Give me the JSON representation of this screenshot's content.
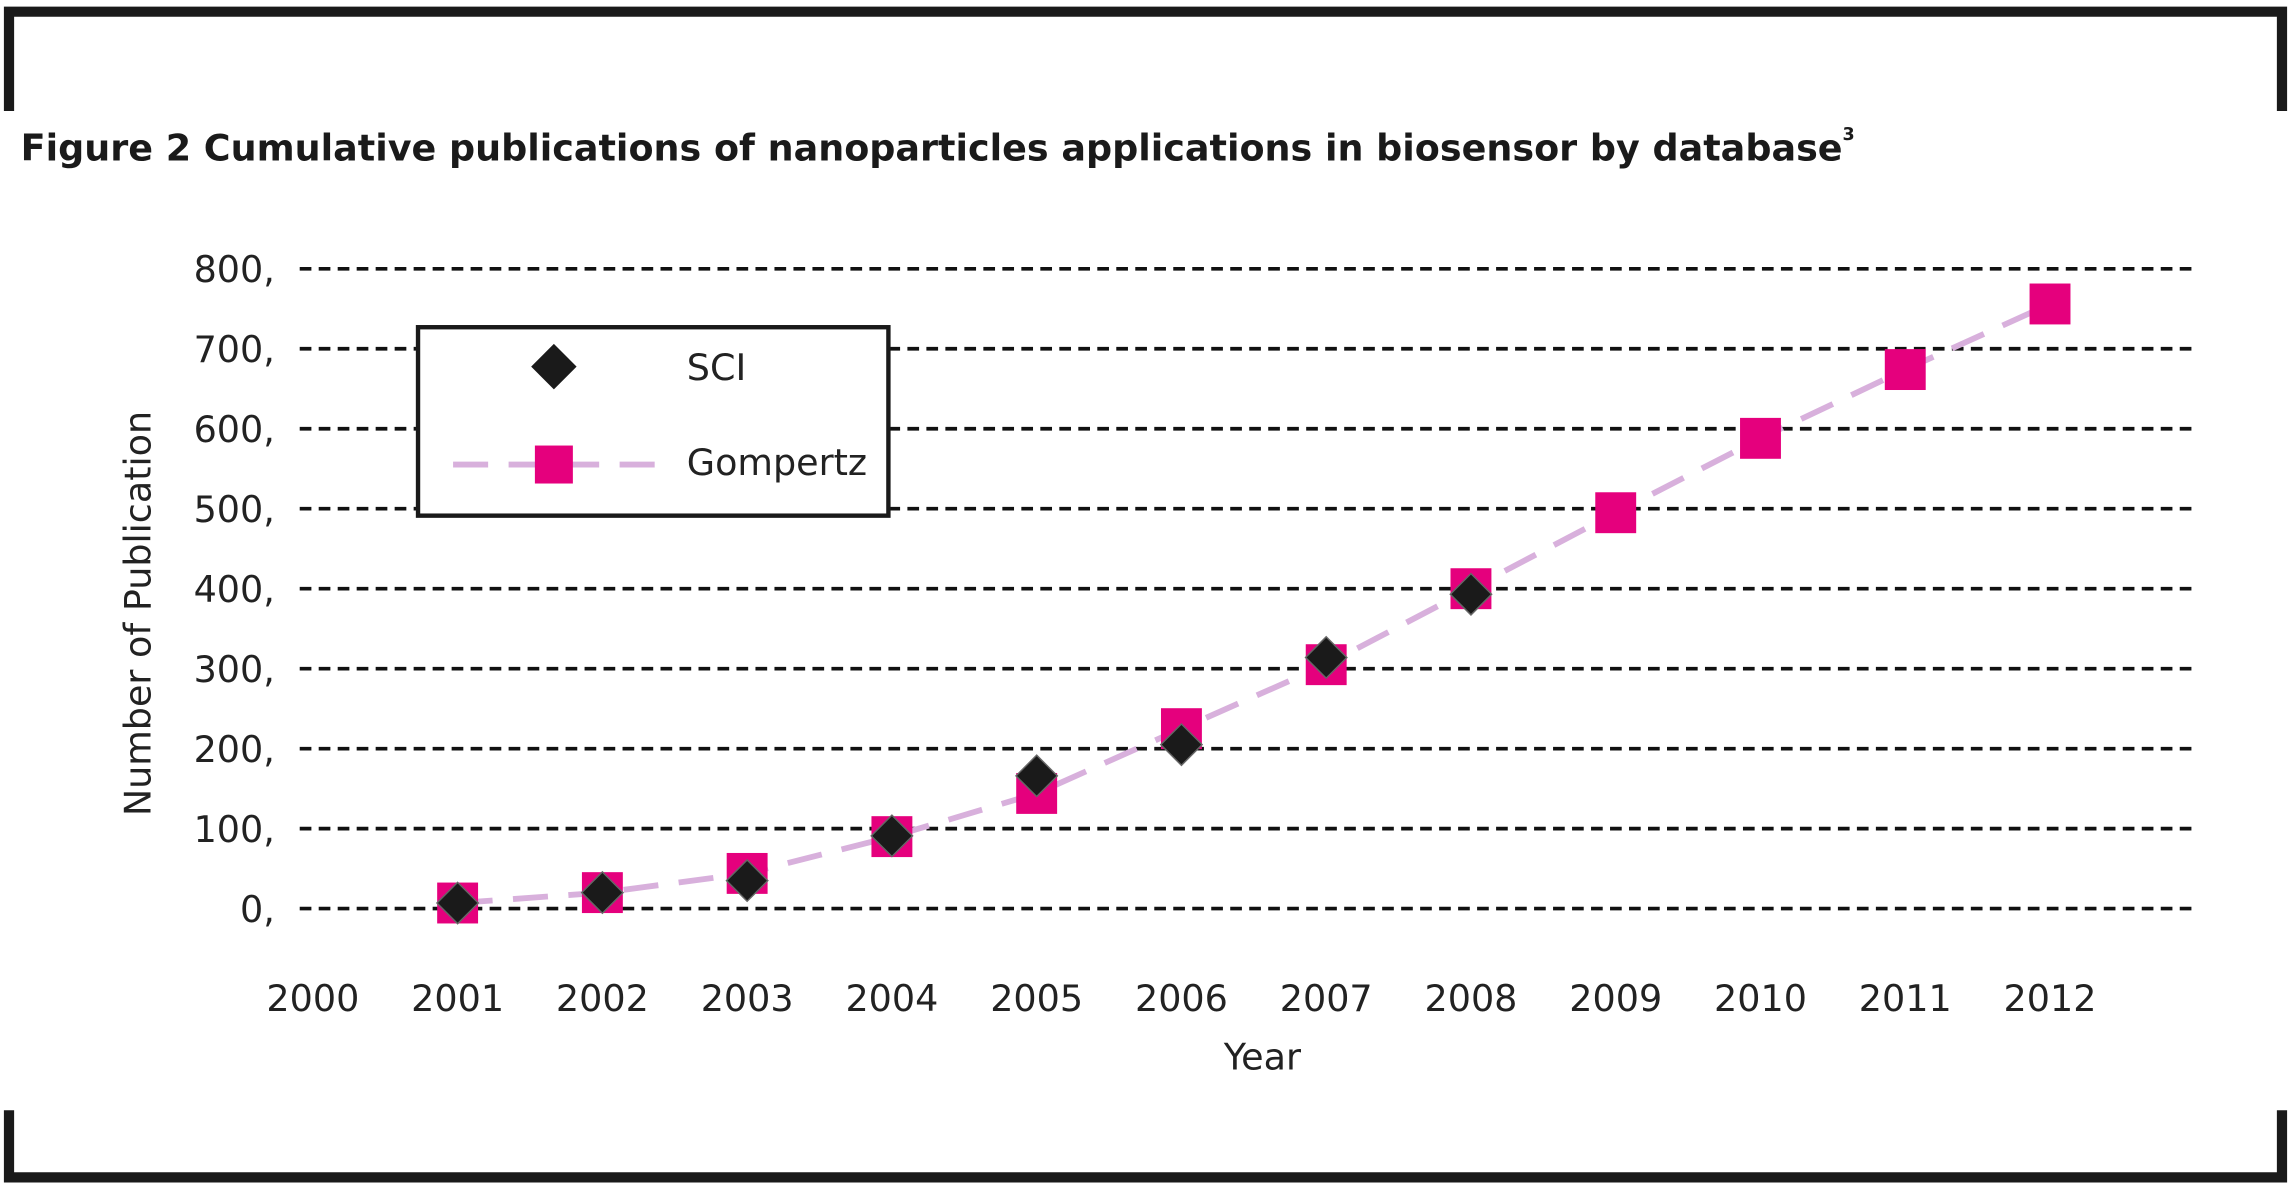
{
  "title": {
    "prefix": "Figure 2",
    "text": " Cumulative publications of nanoparticles applications in biosensor by database",
    "superscript": "3"
  },
  "chart_data": {
    "type": "line",
    "title": "Cumulative publications of nanoparticles applications in biosensor by database",
    "xlabel": "Year",
    "ylabel": "Number of Publication",
    "xlim": [
      2000,
      2012
    ],
    "ylim": [
      0,
      800
    ],
    "x_ticks": [
      "2000",
      "2001",
      "2002",
      "2003",
      "2004",
      "2005",
      "2006",
      "2007",
      "2008",
      "2009",
      "2010",
      "2011",
      "2012"
    ],
    "y_ticks": [
      "0,",
      "100,",
      "200,",
      "300,",
      "400,",
      "500,",
      "600,",
      "700,",
      "800,"
    ],
    "y_tick_values": [
      0,
      100,
      200,
      300,
      400,
      500,
      600,
      700,
      800
    ],
    "grid": "horizontal dashed",
    "legend_position": "top-left",
    "series": [
      {
        "name": "SCI",
        "marker": "diamond",
        "color": "#1a1a1a",
        "x": [
          2001,
          2002,
          2003,
          2004,
          2005,
          2006,
          2007,
          2008
        ],
        "values": [
          7,
          20,
          35,
          91,
          166,
          205,
          314,
          393
        ]
      },
      {
        "name": "Gompertz",
        "marker": "square",
        "color": "#e5007d",
        "line_color": "#d8b0dc",
        "x": [
          2001,
          2002,
          2003,
          2004,
          2005,
          2006,
          2007,
          2008,
          2009,
          2010,
          2011,
          2012
        ],
        "values": [
          7,
          20,
          44,
          90,
          144,
          225,
          305,
          400,
          495,
          588,
          674,
          756
        ]
      }
    ]
  }
}
